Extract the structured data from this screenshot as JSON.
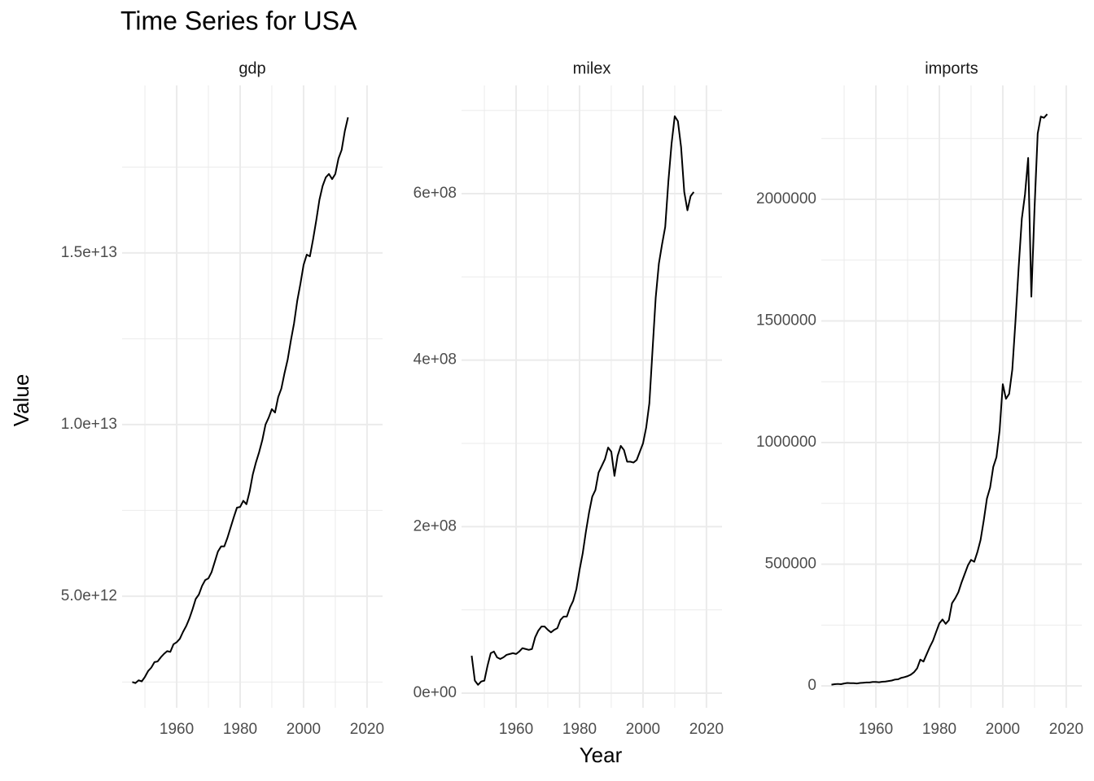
{
  "title": "Time Series for USA",
  "x_label": "Year",
  "y_label": "Value",
  "chart_data": [
    {
      "type": "line",
      "title": "gdp",
      "color": "#000000",
      "grid": true,
      "x": [
        1946,
        1947,
        1948,
        1949,
        1950,
        1951,
        1952,
        1953,
        1954,
        1955,
        1956,
        1957,
        1958,
        1959,
        1960,
        1961,
        1962,
        1963,
        1964,
        1965,
        1966,
        1967,
        1968,
        1969,
        1970,
        1971,
        1972,
        1973,
        1974,
        1975,
        1976,
        1977,
        1978,
        1979,
        1980,
        1981,
        1982,
        1983,
        1984,
        1985,
        1986,
        1987,
        1988,
        1989,
        1990,
        1991,
        1992,
        1993,
        1994,
        1995,
        1996,
        1997,
        1998,
        1999,
        2000,
        2001,
        2002,
        2003,
        2004,
        2005,
        2006,
        2007,
        2008,
        2009,
        2010,
        2011,
        2012,
        2013,
        2014
      ],
      "values": [
        2500000000000.0,
        2470000000000.0,
        2550000000000.0,
        2520000000000.0,
        2650000000000.0,
        2820000000000.0,
        2920000000000.0,
        3080000000000.0,
        3100000000000.0,
        3220000000000.0,
        3320000000000.0,
        3400000000000.0,
        3380000000000.0,
        3600000000000.0,
        3660000000000.0,
        3760000000000.0,
        3960000000000.0,
        4130000000000.0,
        4350000000000.0,
        4620000000000.0,
        4920000000000.0,
        5050000000000.0,
        5300000000000.0,
        5470000000000.0,
        5520000000000.0,
        5700000000000.0,
        6000000000000.0,
        6300000000000.0,
        6450000000000.0,
        6450000000000.0,
        6700000000000.0,
        7000000000000.0,
        7300000000000.0,
        7580000000000.0,
        7600000000000.0,
        7780000000000.0,
        7680000000000.0,
        8050000000000.0,
        8550000000000.0,
        8900000000000.0,
        9200000000000.0,
        9550000000000.0,
        10000000000000.0,
        10200000000000.0,
        10450000000000.0,
        10350000000000.0,
        10800000000000.0,
        11050000000000.0,
        11500000000000.0,
        11900000000000.0,
        12450000000000.0,
        12950000000000.0,
        13600000000000.0,
        14100000000000.0,
        14650000000000.0,
        14950000000000.0,
        14900000000000.0,
        15400000000000.0,
        15950000000000.0,
        16550000000000.0,
        16950000000000.0,
        17200000000000.0,
        17300000000000.0,
        17150000000000.0,
        17300000000000.0,
        17750000000000.0,
        18000000000000.0,
        18550000000000.0,
        18950000000000.0
      ],
      "xlim": [
        1942.8,
        2024.9
      ],
      "xticks": [
        1960,
        1980,
        2000,
        2020
      ],
      "minor_xticks": [
        1950,
        1970,
        1990,
        2010
      ],
      "ylim": [
        1750000000000.0,
        19880000000000.0
      ],
      "yticks": [
        {
          "value": 5000000000000.0,
          "label": "5.0e+12"
        },
        {
          "value": 10000000000000.0,
          "label": "1.0e+13"
        },
        {
          "value": 15000000000000.0,
          "label": "1.5e+13"
        }
      ],
      "minor_yticks": [
        2500000000000.0,
        7500000000000.0,
        12500000000000.0,
        17500000000000.0
      ]
    },
    {
      "type": "line",
      "title": "milex",
      "color": "#000000",
      "grid": true,
      "x": [
        1946,
        1947,
        1948,
        1949,
        1950,
        1951,
        1952,
        1953,
        1954,
        1955,
        1956,
        1957,
        1958,
        1959,
        1960,
        1961,
        1962,
        1963,
        1964,
        1965,
        1966,
        1967,
        1968,
        1969,
        1970,
        1971,
        1972,
        1973,
        1974,
        1975,
        1976,
        1977,
        1978,
        1979,
        1980,
        1981,
        1982,
        1983,
        1984,
        1985,
        1986,
        1987,
        1988,
        1989,
        1990,
        1991,
        1992,
        1993,
        1994,
        1995,
        1996,
        1997,
        1998,
        1999,
        2000,
        2001,
        2002,
        2003,
        2004,
        2005,
        2006,
        2007,
        2008,
        2009,
        2010,
        2011,
        2012,
        2013,
        2014,
        2015,
        2016
      ],
      "values": [
        45000000.0,
        15000000.0,
        10000000.0,
        14000000.0,
        15000000.0,
        33000000.0,
        48000000.0,
        50000000.0,
        43000000.0,
        41000000.0,
        43000000.0,
        46000000.0,
        47000000.0,
        48000000.0,
        47000000.0,
        50000000.0,
        54000000.0,
        53000000.0,
        52000000.0,
        53000000.0,
        67000000.0,
        75000000.0,
        80000000.0,
        80000000.0,
        76000000.0,
        73000000.0,
        76000000.0,
        78000000.0,
        88000000.0,
        92000000.0,
        92000000.0,
        103000000.0,
        111000000.0,
        125000000.0,
        148000000.0,
        168000000.0,
        194000000.0,
        217000000.0,
        236000000.0,
        244000000.0,
        265000000.0,
        273000000.0,
        281000000.0,
        295000000.0,
        290000000.0,
        261000000.0,
        285000000.0,
        297000000.0,
        292000000.0,
        278000000.0,
        278000000.0,
        277000000.0,
        280000000.0,
        290000000.0,
        300000000.0,
        319000000.0,
        348000000.0,
        412000000.0,
        475000000.0,
        516000000.0,
        539000000.0,
        560000000.0,
        615000000.0,
        660000000.0,
        693000000.0,
        687000000.0,
        656000000.0,
        602000000.0,
        580000000.0,
        597000000.0,
        602000000.0
      ],
      "xlim": [
        1942.8,
        2024.9
      ],
      "xticks": [
        1960,
        1980,
        2000,
        2020
      ],
      "minor_xticks": [
        1950,
        1970,
        1990,
        2010
      ],
      "ylim": [
        -17600000.0,
        730000000.0
      ],
      "yticks": [
        {
          "value": 0,
          "label": "0e+00"
        },
        {
          "value": 200000000.0,
          "label": "2e+08"
        },
        {
          "value": 400000000.0,
          "label": "4e+08"
        },
        {
          "value": 600000000.0,
          "label": "6e+08"
        }
      ],
      "minor_yticks": [
        100000000.0,
        300000000.0,
        500000000.0,
        700000000.0
      ]
    },
    {
      "type": "line",
      "title": "imports",
      "color": "#000000",
      "grid": true,
      "x": [
        1946,
        1947,
        1948,
        1949,
        1950,
        1951,
        1952,
        1953,
        1954,
        1955,
        1956,
        1957,
        1958,
        1959,
        1960,
        1961,
        1962,
        1963,
        1964,
        1965,
        1966,
        1967,
        1968,
        1969,
        1970,
        1971,
        1972,
        1973,
        1974,
        1975,
        1976,
        1977,
        1978,
        1979,
        1980,
        1981,
        1982,
        1983,
        1984,
        1985,
        1986,
        1987,
        1988,
        1989,
        1990,
        1991,
        1992,
        1993,
        1994,
        1995,
        1996,
        1997,
        1998,
        1999,
        2000,
        2001,
        2002,
        2003,
        2004,
        2005,
        2006,
        2007,
        2008,
        2009,
        2010,
        2011,
        2012,
        2013,
        2014
      ],
      "values": [
        5000,
        7000,
        8000,
        7000,
        10000,
        12000,
        11000,
        11000,
        10000,
        12000,
        13000,
        14000,
        14000,
        16000,
        16000,
        15000,
        17000,
        18000,
        20000,
        22000,
        26000,
        27000,
        33000,
        36000,
        40000,
        46000,
        56000,
        72000,
        108000,
        100000,
        130000,
        160000,
        186000,
        222000,
        257000,
        273000,
        255000,
        270000,
        340000,
        360000,
        385000,
        425000,
        460000,
        495000,
        518000,
        510000,
        550000,
        600000,
        680000,
        770000,
        815000,
        900000,
        940000,
        1050000,
        1240000,
        1180000,
        1200000,
        1300000,
        1500000,
        1720000,
        1920000,
        2020000,
        2170000,
        1600000,
        1960000,
        2270000,
        2340000,
        2335000,
        2350000
      ],
      "xlim": [
        1942.8,
        2024.9
      ],
      "xticks": [
        1960,
        1980,
        2000,
        2020
      ],
      "minor_xticks": [
        1950,
        1970,
        1990,
        2010
      ],
      "ylim": [
        -90000,
        2468000
      ],
      "yticks": [
        0,
        500000,
        1000000,
        1500000,
        2000000
      ],
      "minor_yticks": [
        250000,
        750000,
        1250000,
        1750000,
        2250000
      ]
    }
  ]
}
